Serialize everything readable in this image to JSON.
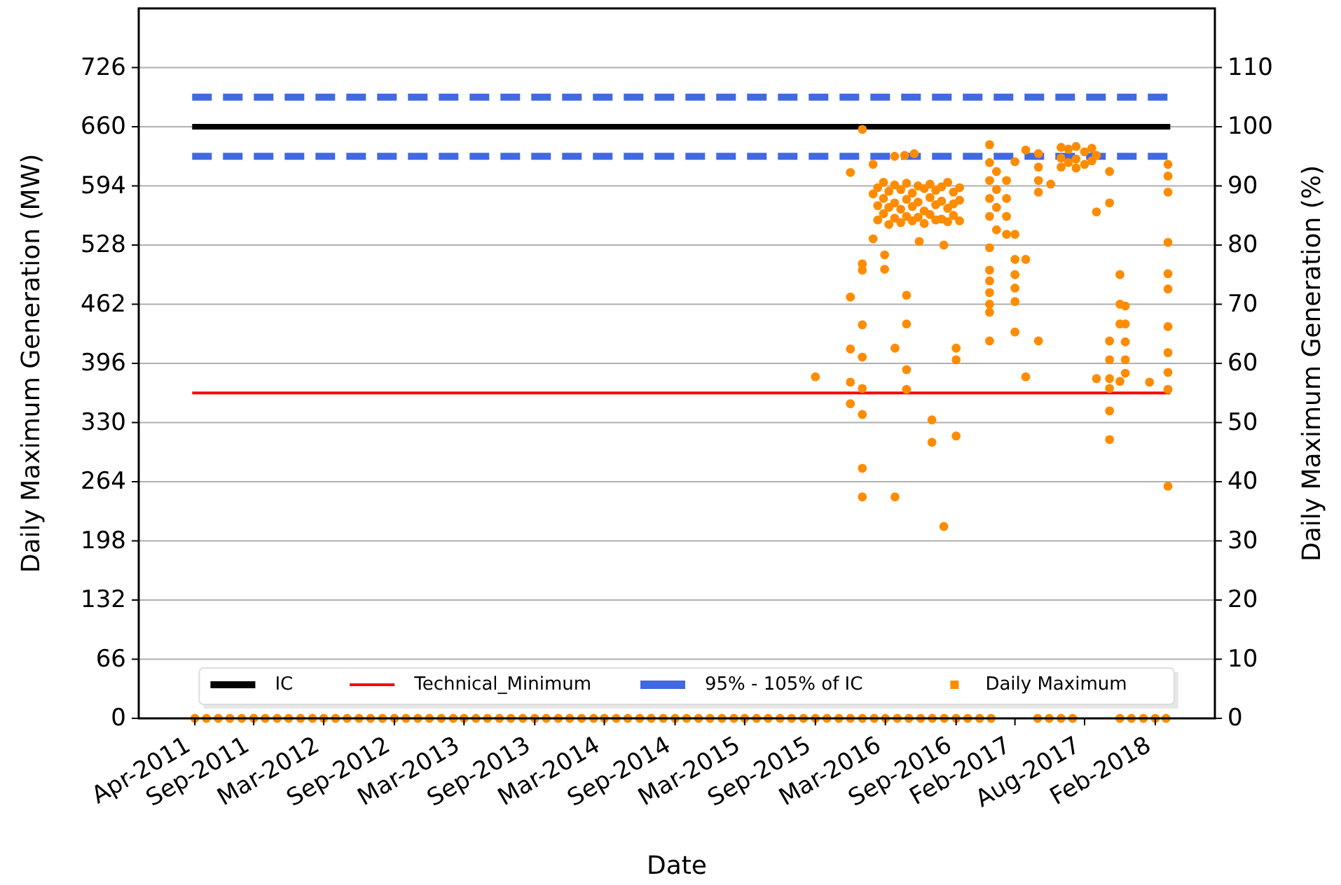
{
  "chart_data": {
    "type": "scatter",
    "xlabel": "Date",
    "ylabel": "Daily Maximum Generation (MW)",
    "y2label": "Daily Maximum Generation (%)",
    "xlim": [
      "2010-11-06",
      "2018-07-06"
    ],
    "xticks": [
      {
        "value": "2011-04-01",
        "label": "Apr-2011"
      },
      {
        "value": "2011-09-01",
        "label": "Sep-2011"
      },
      {
        "value": "2012-03-01",
        "label": "Mar-2012"
      },
      {
        "value": "2012-09-01",
        "label": "Sep-2012"
      },
      {
        "value": "2013-03-01",
        "label": "Mar-2013"
      },
      {
        "value": "2013-09-01",
        "label": "Sep-2013"
      },
      {
        "value": "2014-03-01",
        "label": "Mar-2014"
      },
      {
        "value": "2014-09-01",
        "label": "Sep-2014"
      },
      {
        "value": "2015-03-01",
        "label": "Mar-2015"
      },
      {
        "value": "2015-09-01",
        "label": "Sep-2015"
      },
      {
        "value": "2016-03-01",
        "label": "Mar-2016"
      },
      {
        "value": "2016-09-01",
        "label": "Sep-2016"
      },
      {
        "value": "2017-02-01",
        "label": "Feb-2017"
      },
      {
        "value": "2017-08-01",
        "label": "Aug-2017"
      },
      {
        "value": "2018-02-01",
        "label": "Feb-2018"
      }
    ],
    "ylim": [
      0,
      792
    ],
    "yticks": [
      0,
      66,
      132,
      198,
      264,
      330,
      396,
      462,
      528,
      594,
      660,
      726
    ],
    "y2lim": [
      0,
      120
    ],
    "y2ticks": [
      0,
      10,
      20,
      30,
      40,
      50,
      60,
      70,
      80,
      90,
      100,
      110
    ],
    "grid": "y",
    "legend": "bottom",
    "series": [
      {
        "name": "IC",
        "type": "line",
        "color": "#000000",
        "line_style": "solid",
        "marker": "none",
        "x": [
          "2011-03-25",
          "2018-03-12"
        ],
        "values": [
          660,
          660
        ]
      },
      {
        "name": "Technical_Minimum",
        "type": "line",
        "color": "#ff0000",
        "line_style": "solid",
        "marker": "none",
        "x": [
          "2011-03-25",
          "2018-03-12"
        ],
        "values": [
          363,
          363
        ]
      },
      {
        "name": "95% - 105% of IC",
        "type": "line",
        "color": "#4169e1",
        "line_style": "dashed",
        "marker": "none",
        "x": [
          "2011-03-25",
          "2018-03-12"
        ],
        "values": [
          627,
          627
        ]
      },
      {
        "type": "line",
        "color": "#4169e1",
        "line_style": "dashed",
        "marker": "none",
        "x": [
          "2011-03-25",
          "2018-03-12"
        ],
        "values": [
          693,
          693
        ]
      },
      {
        "name": "Daily Maximum",
        "color": "#ff8c00",
        "marker": "circle",
        "x": [
          "2011-04-01",
          "2011-05-01",
          "2011-06-01",
          "2011-07-01",
          "2011-08-01",
          "2011-09-01",
          "2011-10-01",
          "2011-11-01",
          "2011-12-01",
          "2012-01-01",
          "2012-02-01",
          "2012-03-01",
          "2012-04-01",
          "2012-05-01",
          "2012-06-01",
          "2012-07-01",
          "2012-08-01",
          "2012-09-01",
          "2012-10-01",
          "2012-11-01",
          "2012-12-01",
          "2013-01-01",
          "2013-02-01",
          "2013-03-01",
          "2013-04-01",
          "2013-05-01",
          "2013-06-01",
          "2013-07-01",
          "2013-08-01",
          "2013-09-01",
          "2013-10-01",
          "2013-11-01",
          "2013-12-01",
          "2014-01-01",
          "2014-02-01",
          "2014-03-01",
          "2014-04-01",
          "2014-05-01",
          "2014-06-01",
          "2014-07-01",
          "2014-08-01",
          "2014-09-01",
          "2014-10-01",
          "2014-11-01",
          "2014-12-01",
          "2015-01-01",
          "2015-02-01",
          "2015-03-01",
          "2015-04-01",
          "2015-05-01",
          "2015-06-01",
          "2015-07-01",
          "2015-08-01",
          "2015-09-01",
          "2015-10-01",
          "2015-11-01",
          "2015-12-01",
          "2016-01-01",
          "2016-02-01",
          "2016-03-01",
          "2016-04-01",
          "2016-05-01",
          "2016-06-01",
          "2016-07-01",
          "2016-08-01",
          "2016-09-01",
          "2016-10-01",
          "2016-11-01",
          "2016-12-01",
          "2017-04-01",
          "2017-05-01",
          "2017-06-01",
          "2017-07-01",
          "2017-11-01",
          "2017-12-01",
          "2018-01-01",
          "2018-02-01",
          "2018-03-01",
          "2015-09-01",
          "2015-12-01",
          "2015-12-01",
          "2015-12-01",
          "2015-12-01",
          "2015-12-01",
          "2016-01-01",
          "2016-01-01",
          "2016-01-01",
          "2016-01-01",
          "2016-01-01",
          "2016-01-01",
          "2016-01-01",
          "2016-01-01",
          "2016-01-01",
          "2016-01-29",
          "2016-01-29",
          "2016-01-29",
          "2016-02-28",
          "2016-02-28",
          "2016-03-26",
          "2016-03-26",
          "2016-04-25",
          "2016-04-25",
          "2016-04-25",
          "2016-04-25",
          "2016-05-28",
          "2016-06-30",
          "2016-06-30",
          "2016-07-31",
          "2016-07-31",
          "2016-09-01",
          "2016-09-01",
          "2016-09-01",
          "2016-02-10",
          "2016-02-10",
          "2016-02-10",
          "2016-02-25",
          "2016-02-25",
          "2016-02-25",
          "2016-03-10",
          "2016-03-10",
          "2016-03-10",
          "2016-03-25",
          "2016-03-25",
          "2016-03-25",
          "2016-04-10",
          "2016-04-10",
          "2016-04-10",
          "2016-04-25",
          "2016-04-25",
          "2016-04-25",
          "2016-05-10",
          "2016-05-10",
          "2016-05-10",
          "2016-05-25",
          "2016-05-25",
          "2016-05-25",
          "2016-06-10",
          "2016-06-10",
          "2016-06-10",
          "2016-06-25",
          "2016-06-25",
          "2016-06-25",
          "2016-07-10",
          "2016-07-10",
          "2016-07-10",
          "2016-07-25",
          "2016-07-25",
          "2016-07-25",
          "2016-08-10",
          "2016-08-10",
          "2016-08-10",
          "2016-08-25",
          "2016-08-25",
          "2016-08-25",
          "2016-09-10",
          "2016-09-10",
          "2016-09-10",
          "2016-03-25",
          "2016-04-20",
          "2016-05-15",
          "2016-11-27",
          "2016-11-27",
          "2016-11-27",
          "2016-11-27",
          "2016-11-27",
          "2016-11-27",
          "2016-11-27",
          "2016-11-27",
          "2016-11-27",
          "2016-11-27",
          "2016-11-27",
          "2016-11-27",
          "2016-12-15",
          "2016-12-15",
          "2016-12-15",
          "2016-12-15",
          "2017-01-10",
          "2017-01-10",
          "2017-01-10",
          "2017-01-10",
          "2017-02-01",
          "2017-02-01",
          "2017-02-01",
          "2017-02-01",
          "2017-02-01",
          "2017-02-01",
          "2017-02-01",
          "2017-03-01",
          "2017-03-01",
          "2017-03-01",
          "2017-04-03",
          "2017-04-03",
          "2017-04-03",
          "2017-04-03",
          "2017-04-03",
          "2017-05-05",
          "2017-06-01",
          "2017-06-01",
          "2017-06-01",
          "2017-06-20",
          "2017-06-20",
          "2017-07-10",
          "2017-07-10",
          "2017-07-10",
          "2017-08-01",
          "2017-08-01",
          "2017-08-20",
          "2017-08-20",
          "2017-09-01",
          "2017-09-01",
          "2017-09-01",
          "2017-10-05",
          "2017-10-05",
          "2017-10-05",
          "2017-10-05",
          "2017-10-05",
          "2017-10-05",
          "2017-10-05",
          "2017-10-05",
          "2017-11-01",
          "2017-11-01",
          "2017-11-01",
          "2017-11-01",
          "2017-11-15",
          "2017-11-15",
          "2017-11-15",
          "2017-11-15",
          "2017-11-15",
          "2018-01-17",
          "2018-03-06",
          "2018-03-06",
          "2018-03-06",
          "2018-03-06",
          "2018-03-06",
          "2018-03-06",
          "2018-03-06",
          "2018-03-06",
          "2018-03-06",
          "2018-03-06",
          "2018-03-06"
        ],
        "values": [
          0,
          0,
          0,
          0,
          0,
          0,
          0,
          0,
          0,
          0,
          0,
          0,
          0,
          0,
          0,
          0,
          0,
          0,
          0,
          0,
          0,
          0,
          0,
          0,
          0,
          0,
          0,
          0,
          0,
          0,
          0,
          0,
          0,
          0,
          0,
          0,
          0,
          0,
          0,
          0,
          0,
          0,
          0,
          0,
          0,
          0,
          0,
          0,
          0,
          0,
          0,
          0,
          0,
          0,
          0,
          0,
          0,
          0,
          0,
          0,
          0,
          0,
          0,
          0,
          0,
          0,
          0,
          0,
          0,
          0,
          0,
          0,
          0,
          0,
          0,
          0,
          0,
          0,
          381,
          609,
          470,
          412,
          375,
          351,
          657,
          507,
          500,
          439,
          403,
          368,
          339,
          279,
          247,
          618,
          585,
          535,
          517,
          501,
          413,
          247,
          472,
          440,
          389,
          367,
          532,
          333,
          308,
          528,
          214,
          413,
          400,
          315,
          592,
          572,
          556,
          598,
          580,
          563,
          588,
          570,
          551,
          595,
          575,
          558,
          590,
          568,
          553,
          597,
          579,
          560,
          586,
          571,
          555,
          594,
          576,
          559,
          591,
          566,
          552,
          596,
          581,
          562,
          589,
          573,
          556,
          593,
          577,
          557,
          598,
          569,
          554,
          587,
          574,
          561,
          592,
          578,
          555,
          627,
          628,
          630,
          640,
          620,
          600,
          580,
          560,
          525,
          500,
          488,
          475,
          462,
          453,
          421,
          610,
          590,
          570,
          545,
          600,
          580,
          560,
          540,
          621,
          512,
          495,
          480,
          465,
          431,
          540,
          634,
          512,
          381,
          630,
          615,
          600,
          587,
          421,
          596,
          637,
          625,
          615,
          635,
          620,
          638,
          624,
          614,
          632,
          618,
          636,
          622,
          565,
          379,
          628,
          610,
          575,
          421,
          400,
          379,
          368,
          343,
          311,
          495,
          376,
          462,
          440,
          460,
          440,
          420,
          400,
          385,
          375,
          618,
          605,
          587,
          531,
          496,
          479,
          437,
          408,
          386,
          367,
          259
        ]
      }
    ]
  }
}
